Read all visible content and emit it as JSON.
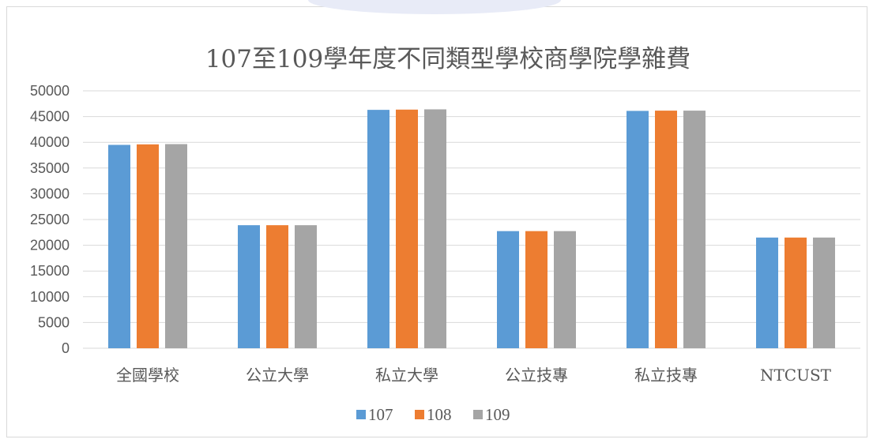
{
  "chart_data": {
    "type": "bar",
    "title": "107至109學年度不同類型學校商學院學雜費",
    "categories": [
      "全國學校",
      "公立大學",
      "私立大學",
      "公立技專",
      "私立技專",
      "NTCUST"
    ],
    "series": [
      {
        "name": "107",
        "color": "#5b9bd5",
        "values": [
          39500,
          23900,
          46300,
          22750,
          46100,
          21500
        ]
      },
      {
        "name": "108",
        "color": "#ed7d31",
        "values": [
          39600,
          23900,
          46350,
          22750,
          46150,
          21500
        ]
      },
      {
        "name": "109",
        "color": "#a5a5a5",
        "values": [
          39650,
          23900,
          46400,
          22750,
          46150,
          21500
        ]
      }
    ],
    "ylim": [
      0,
      50000
    ],
    "yticks": [
      0,
      5000,
      10000,
      15000,
      20000,
      25000,
      30000,
      35000,
      40000,
      45000,
      50000
    ],
    "grid": true,
    "legend_position": "bottom"
  }
}
